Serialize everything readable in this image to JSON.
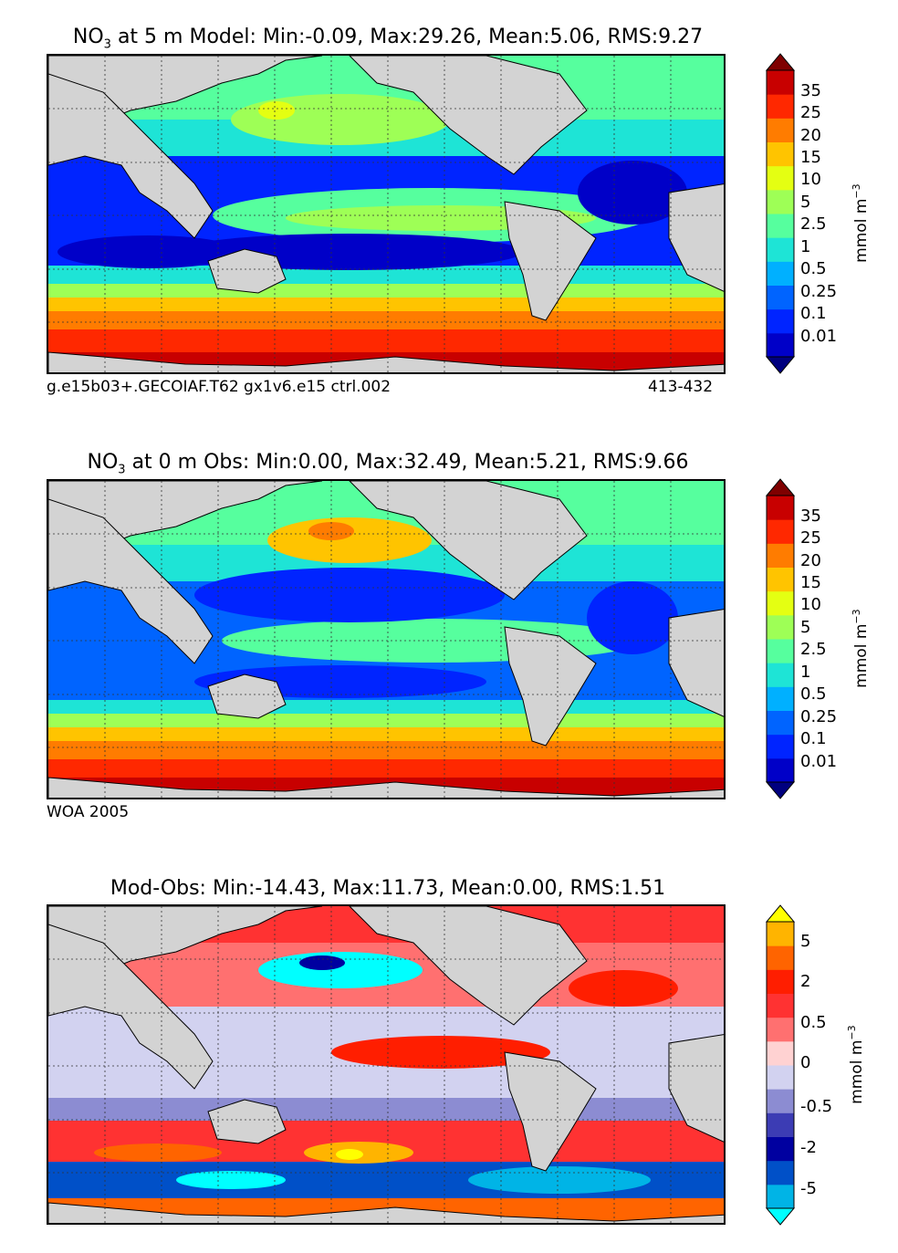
{
  "panels": [
    {
      "id": "model",
      "title_prefix": "NO",
      "title_sub": "3",
      "title_suffix": " at 5 m Model: Min:-0.09, Max:29.26, Mean:5.06, RMS:9.27",
      "footer_left": "g.e15b03+.GECOIAF.T62 gx1v6.e15 ctrl.002",
      "footer_right": "413-432",
      "colorbar": {
        "ticks": [
          "35",
          "25",
          "20",
          "15",
          "10",
          "5",
          "2.5",
          "1",
          "0.5",
          "0.25",
          "0.1",
          "0.01"
        ],
        "colors": [
          "#00007f",
          "#0000c8",
          "#0024ff",
          "#0064ff",
          "#00b0ff",
          "#1ee4d6",
          "#56ff9e",
          "#9eff56",
          "#e4ff12",
          "#ffc400",
          "#ff7c00",
          "#ff2800",
          "#c80000",
          "#7f0000"
        ],
        "unit": "mmol m",
        "unit_exp": "−3"
      }
    },
    {
      "id": "obs",
      "title_prefix": "NO",
      "title_sub": "3",
      "title_suffix": " at 0 m Obs: Min:0.00, Max:32.49, Mean:5.21, RMS:9.66",
      "footer_left": "WOA 2005",
      "colorbar": {
        "ticks": [
          "35",
          "25",
          "20",
          "15",
          "10",
          "5",
          "2.5",
          "1",
          "0.5",
          "0.25",
          "0.1",
          "0.01"
        ],
        "colors": [
          "#00007f",
          "#0000c8",
          "#0024ff",
          "#0064ff",
          "#00b0ff",
          "#1ee4d6",
          "#56ff9e",
          "#9eff56",
          "#e4ff12",
          "#ffc400",
          "#ff7c00",
          "#ff2800",
          "#c80000",
          "#7f0000"
        ],
        "unit": "mmol m",
        "unit_exp": "−3"
      }
    },
    {
      "id": "diff",
      "title": "Mod-Obs: Min:-14.43, Max:11.73, Mean:0.00, RMS:1.51",
      "colorbar": {
        "ticks": [
          "5",
          "2",
          "0.5",
          "0",
          "-0.5",
          "-2",
          "-5"
        ],
        "colors": [
          "#00ffff",
          "#00b4e6",
          "#0050c8",
          "#0000a0",
          "#3c3cb4",
          "#8c8cd2",
          "#d2d2f0",
          "#ffd2d2",
          "#ff7070",
          "#ff3232",
          "#ff1e00",
          "#ff6400",
          "#ffb400",
          "#ffff00"
        ],
        "unit": "mmol m",
        "unit_exp": "−3"
      }
    }
  ]
}
